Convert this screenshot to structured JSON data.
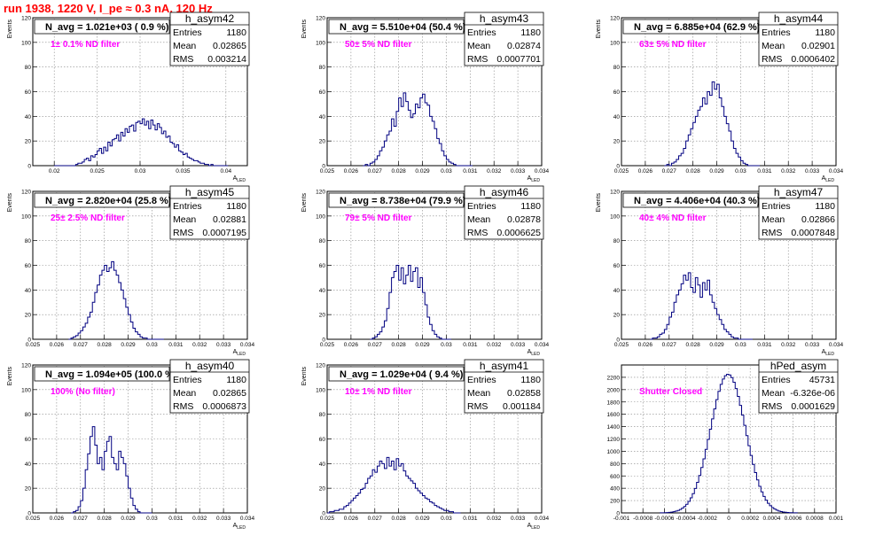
{
  "title": "run 1938,  1220 V, I_pe ≈ 0.3 nA, 120 Hz",
  "chart_data": [
    {
      "type": "bar",
      "hist": "h_asym42",
      "annotation_main": "N_avg = 1.021e+03 ( 0.9 %)",
      "annotation_sub": "1± 0.1% ND filter",
      "stats": {
        "title": "h_asym42",
        "entries_label": "Entries",
        "entries": "1180",
        "mean_label": "Mean",
        "mean": "0.02865",
        "rms_label": "RMS",
        "rms": "0.003214"
      },
      "xlabel": "A_LED",
      "ylabel": "Events",
      "xlim": [
        0.0175,
        0.0425
      ],
      "ylim": [
        0,
        120
      ],
      "xticks": [
        "0.02",
        "0.025",
        "0.03",
        "0.035",
        "0.04"
      ],
      "xtick_vals": [
        0.02,
        0.025,
        0.03,
        0.035,
        0.04
      ],
      "yticks": [
        "0",
        "20",
        "40",
        "60",
        "80",
        "100",
        "120"
      ],
      "ytick_vals": [
        0,
        20,
        40,
        60,
        80,
        100,
        120
      ],
      "x_start": 0.02,
      "bin_width": 0.00025,
      "values": [
        0,
        0,
        0,
        0,
        0,
        0,
        0,
        0,
        0,
        0,
        1,
        2,
        2,
        3,
        5,
        6,
        4,
        8,
        7,
        9,
        12,
        14,
        10,
        15,
        12,
        19,
        16,
        21,
        22,
        25,
        20,
        27,
        24,
        30,
        27,
        32,
        33,
        28,
        35,
        36,
        34,
        38,
        33,
        36,
        30,
        37,
        33,
        29,
        34,
        31,
        26,
        28,
        23,
        24,
        19,
        18,
        15,
        17,
        12,
        11,
        9,
        10,
        7,
        6,
        5,
        4,
        4,
        3,
        2,
        2,
        1,
        1,
        0,
        1,
        0,
        0,
        0,
        0,
        0,
        0,
        0
      ]
    },
    {
      "type": "bar",
      "hist": "h_asym43",
      "annotation_main": "N_avg = 5.510e+04 (50.4 %)",
      "annotation_sub": "50± 5% ND filter",
      "stats": {
        "title": "h_asym43",
        "entries_label": "Entries",
        "entries": "1180",
        "mean_label": "Mean",
        "mean": "0.02874",
        "rms_label": "RMS",
        "rms": "0.0007701"
      },
      "xlabel": "A_LED",
      "ylabel": "Events",
      "xlim": [
        0.025,
        0.034
      ],
      "ylim": [
        0,
        120
      ],
      "xticks": [
        "0.025",
        "0.026",
        "0.027",
        "0.028",
        "0.029",
        "0.03",
        "0.031",
        "0.032",
        "0.033",
        "0.034"
      ],
      "xtick_vals": [
        0.025,
        0.026,
        0.027,
        0.028,
        0.029,
        0.03,
        0.031,
        0.032,
        0.033,
        0.034
      ],
      "yticks": [
        "0",
        "20",
        "40",
        "60",
        "80",
        "100",
        "120"
      ],
      "ytick_vals": [
        0,
        20,
        40,
        60,
        80,
        100,
        120
      ],
      "x_start": 0.0265,
      "bin_width": 0.0001,
      "values": [
        0,
        1,
        0,
        2,
        3,
        5,
        8,
        12,
        15,
        20,
        25,
        28,
        38,
        32,
        44,
        55,
        48,
        59,
        52,
        45,
        39,
        42,
        50,
        47,
        55,
        58,
        51,
        49,
        40,
        36,
        30,
        22,
        18,
        12,
        8,
        5,
        3,
        2,
        1,
        0,
        0,
        0,
        0,
        0,
        0,
        0
      ]
    },
    {
      "type": "bar",
      "hist": "h_asym44",
      "annotation_main": "N_avg = 6.885e+04 (62.9 %)",
      "annotation_sub": "63± 5% ND filter",
      "stats": {
        "title": "h_asym44",
        "entries_label": "Entries",
        "entries": "1180",
        "mean_label": "Mean",
        "mean": "0.02901",
        "rms_label": "RMS",
        "rms": "0.0006402"
      },
      "xlabel": "A_LED",
      "ylabel": "Events",
      "xlim": [
        0.025,
        0.034
      ],
      "ylim": [
        0,
        120
      ],
      "xticks": [
        "0.025",
        "0.026",
        "0.027",
        "0.028",
        "0.029",
        "0.03",
        "0.031",
        "0.032",
        "0.033",
        "0.034"
      ],
      "xtick_vals": [
        0.025,
        0.026,
        0.027,
        0.028,
        0.029,
        0.03,
        0.031,
        0.032,
        0.033,
        0.034
      ],
      "yticks": [
        "0",
        "20",
        "40",
        "60",
        "80",
        "100",
        "120"
      ],
      "ytick_vals": [
        0,
        20,
        40,
        60,
        80,
        100,
        120
      ],
      "x_start": 0.0268,
      "bin_width": 0.0001,
      "values": [
        0,
        1,
        0,
        2,
        3,
        5,
        8,
        10,
        14,
        20,
        25,
        30,
        35,
        40,
        45,
        48,
        55,
        50,
        60,
        57,
        68,
        62,
        66,
        55,
        48,
        40,
        34,
        28,
        20,
        14,
        10,
        7,
        4,
        2,
        1,
        0,
        0,
        0,
        0,
        0
      ]
    },
    {
      "type": "bar",
      "hist": "h_asym45",
      "annotation_main": "N_avg = 2.820e+04 (25.8 %)",
      "annotation_sub": "25± 2.5% ND filter",
      "stats": {
        "title": "h_asym45",
        "entries_label": "Entries",
        "entries": "1180",
        "mean_label": "Mean",
        "mean": "0.02881",
        "rms_label": "RMS",
        "rms": "0.0007195"
      },
      "xlabel": "A_LED",
      "ylabel": "Events",
      "xlim": [
        0.025,
        0.034
      ],
      "ylim": [
        0,
        120
      ],
      "xticks": [
        "0.025",
        "0.026",
        "0.027",
        "0.028",
        "0.029",
        "0.03",
        "0.031",
        "0.032",
        "0.033",
        "0.034"
      ],
      "xtick_vals": [
        0.025,
        0.026,
        0.027,
        0.028,
        0.029,
        0.03,
        0.031,
        0.032,
        0.033,
        0.034
      ],
      "yticks": [
        "0",
        "20",
        "40",
        "60",
        "80",
        "100",
        "120"
      ],
      "ytick_vals": [
        0,
        20,
        40,
        60,
        80,
        100,
        120
      ],
      "x_start": 0.0265,
      "bin_width": 0.0001,
      "values": [
        0,
        1,
        2,
        3,
        5,
        7,
        10,
        13,
        18,
        22,
        30,
        38,
        44,
        52,
        56,
        60,
        55,
        58,
        63,
        56,
        52,
        46,
        40,
        33,
        26,
        20,
        14,
        9,
        6,
        4,
        2,
        1,
        1,
        0,
        0,
        0,
        0,
        0,
        0,
        0
      ]
    },
    {
      "type": "bar",
      "hist": "h_asym46",
      "annotation_main": "N_avg = 8.738e+04 (79.9 %)",
      "annotation_sub": "79± 5% ND filter",
      "stats": {
        "title": "h_asym46",
        "entries_label": "Entries",
        "entries": "1180",
        "mean_label": "Mean",
        "mean": "0.02878",
        "rms_label": "RMS",
        "rms": "0.0006625"
      },
      "xlabel": "A_LED",
      "ylabel": "Events",
      "xlim": [
        0.025,
        0.034
      ],
      "ylim": [
        0,
        120
      ],
      "xticks": [
        "0.025",
        "0.026",
        "0.027",
        "0.028",
        "0.029",
        "0.03",
        "0.031",
        "0.032",
        "0.033",
        "0.034"
      ],
      "xtick_vals": [
        0.025,
        0.026,
        0.027,
        0.028,
        0.029,
        0.03,
        0.031,
        0.032,
        0.033,
        0.034
      ],
      "yticks": [
        "0",
        "20",
        "40",
        "60",
        "80",
        "100",
        "120"
      ],
      "ytick_vals": [
        0,
        20,
        40,
        60,
        80,
        100,
        120
      ],
      "x_start": 0.0268,
      "bin_width": 0.0001,
      "values": [
        0,
        1,
        2,
        4,
        6,
        10,
        15,
        25,
        38,
        50,
        55,
        60,
        48,
        58,
        45,
        52,
        60,
        47,
        55,
        58,
        42,
        50,
        38,
        28,
        18,
        12,
        7,
        4,
        2,
        1,
        0,
        0,
        0,
        0
      ]
    },
    {
      "type": "bar",
      "hist": "h_asym47",
      "annotation_main": "N_avg = 4.406e+04 (40.3 %)",
      "annotation_sub": "40± 4% ND filter",
      "stats": {
        "title": "h_asym47",
        "entries_label": "Entries",
        "entries": "1180",
        "mean_label": "Mean",
        "mean": "0.02866",
        "rms_label": "RMS",
        "rms": "0.0007848"
      },
      "xlabel": "A_LED",
      "ylabel": "Events",
      "xlim": [
        0.025,
        0.034
      ],
      "ylim": [
        0,
        120
      ],
      "xticks": [
        "0.025",
        "0.026",
        "0.027",
        "0.028",
        "0.029",
        "0.03",
        "0.031",
        "0.032",
        "0.033",
        "0.034"
      ],
      "xtick_vals": [
        0.025,
        0.026,
        0.027,
        0.028,
        0.029,
        0.03,
        0.031,
        0.032,
        0.033,
        0.034
      ],
      "yticks": [
        "0",
        "20",
        "40",
        "60",
        "80",
        "100",
        "120"
      ],
      "ytick_vals": [
        0,
        20,
        40,
        60,
        80,
        100,
        120
      ],
      "x_start": 0.0262,
      "bin_width": 0.0001,
      "values": [
        0,
        1,
        1,
        2,
        4,
        5,
        8,
        12,
        18,
        22,
        30,
        36,
        40,
        45,
        52,
        48,
        54,
        42,
        38,
        50,
        44,
        34,
        46,
        40,
        48,
        36,
        30,
        25,
        20,
        16,
        12,
        8,
        6,
        4,
        2,
        1,
        1,
        0,
        0,
        0,
        0,
        0,
        0
      ]
    },
    {
      "type": "bar",
      "hist": "h_asym40",
      "annotation_main": "N_avg = 1.094e+05 (100.0 %)",
      "annotation_sub": "100% (No filter)",
      "stats": {
        "title": "h_asym40",
        "entries_label": "Entries",
        "entries": "1180",
        "mean_label": "Mean",
        "mean": "0.02865",
        "rms_label": "RMS",
        "rms": "0.0006873"
      },
      "xlabel": "A_LED",
      "ylabel": "Events",
      "xlim": [
        0.025,
        0.034
      ],
      "ylim": [
        0,
        120
      ],
      "xticks": [
        "0.025",
        "0.026",
        "0.027",
        "0.028",
        "0.029",
        "0.03",
        "0.031",
        "0.032",
        "0.033",
        "0.034"
      ],
      "xtick_vals": [
        0.025,
        0.026,
        0.027,
        0.028,
        0.029,
        0.03,
        0.031,
        0.032,
        0.033,
        0.034
      ],
      "yticks": [
        "0",
        "20",
        "40",
        "60",
        "80",
        "100",
        "120"
      ],
      "ytick_vals": [
        0,
        20,
        40,
        60,
        80,
        100,
        120
      ],
      "x_start": 0.0266,
      "bin_width": 0.0001,
      "values": [
        0,
        1,
        2,
        5,
        10,
        20,
        35,
        48,
        62,
        70,
        55,
        40,
        45,
        35,
        50,
        58,
        62,
        45,
        40,
        35,
        50,
        45,
        40,
        30,
        20,
        12,
        6,
        3,
        1,
        0,
        0,
        0,
        0,
        0
      ]
    },
    {
      "type": "bar",
      "hist": "h_asym41",
      "annotation_main": "N_avg = 1.029e+04 ( 9.4 %)",
      "annotation_sub": "10± 1% ND filter",
      "stats": {
        "title": "h_asym41",
        "entries_label": "Entries",
        "entries": "1180",
        "mean_label": "Mean",
        "mean": "0.02858",
        "rms_label": "RMS",
        "rms": "0.001184"
      },
      "xlabel": "A_LED",
      "ylabel": "Events",
      "xlim": [
        0.025,
        0.034
      ],
      "ylim": [
        0,
        120
      ],
      "xticks": [
        "0.025",
        "0.026",
        "0.027",
        "0.028",
        "0.029",
        "0.03",
        "0.031",
        "0.032",
        "0.033",
        "0.034"
      ],
      "xtick_vals": [
        0.025,
        0.026,
        0.027,
        0.028,
        0.029,
        0.03,
        0.031,
        0.032,
        0.033,
        0.034
      ],
      "yticks": [
        "0",
        "20",
        "40",
        "60",
        "80",
        "100",
        "120"
      ],
      "ytick_vals": [
        0,
        20,
        40,
        60,
        80,
        100,
        120
      ],
      "x_start": 0.025,
      "bin_width": 0.0001,
      "values": [
        0,
        1,
        1,
        2,
        2,
        3,
        3,
        5,
        6,
        8,
        10,
        12,
        14,
        16,
        19,
        20,
        24,
        28,
        30,
        35,
        33,
        38,
        42,
        40,
        36,
        45,
        38,
        42,
        35,
        44,
        38,
        40,
        34,
        30,
        28,
        26,
        24,
        20,
        18,
        16,
        14,
        12,
        11,
        9,
        8,
        6,
        5,
        4,
        3,
        2,
        2,
        1,
        1,
        0,
        0,
        0
      ]
    },
    {
      "type": "bar",
      "hist": "hPed_asym",
      "annotation_main": "",
      "annotation_sub": "Shutter Closed",
      "stats": {
        "title": "hPed_asym",
        "entries_label": "Entries",
        "entries": "45731",
        "mean_label": "Mean",
        "mean": "-6.326e-06",
        "rms_label": "RMS",
        "rms": "0.0001629"
      },
      "xlabel": "",
      "ylabel": "",
      "xlim": [
        -0.001,
        0.001
      ],
      "ylim": [
        0,
        2400
      ],
      "xticks": [
        "-0.001",
        "-0.0008",
        "-0.0006",
        "-0.0004",
        "-0.0002",
        "0",
        "0.0002",
        "0.0004",
        "0.0006",
        "0.0008",
        "0.001"
      ],
      "xtick_vals": [
        -0.001,
        -0.0008,
        -0.0006,
        -0.0004,
        -0.0002,
        0,
        0.0002,
        0.0004,
        0.0006,
        0.0008,
        0.001
      ],
      "yticks": [
        "0",
        "200",
        "400",
        "600",
        "800",
        "1000",
        "1200",
        "1400",
        "1600",
        "1800",
        "2000",
        "2200"
      ],
      "ytick_vals": [
        0,
        200,
        400,
        600,
        800,
        1000,
        1200,
        1400,
        1600,
        1800,
        2000,
        2200
      ],
      "gaussian": {
        "mean": -6.3e-06,
        "sigma": 0.000163,
        "peak": 2250,
        "x_start": -0.00064,
        "x_end": 0.00064,
        "bin_width": 2e-05
      }
    }
  ]
}
